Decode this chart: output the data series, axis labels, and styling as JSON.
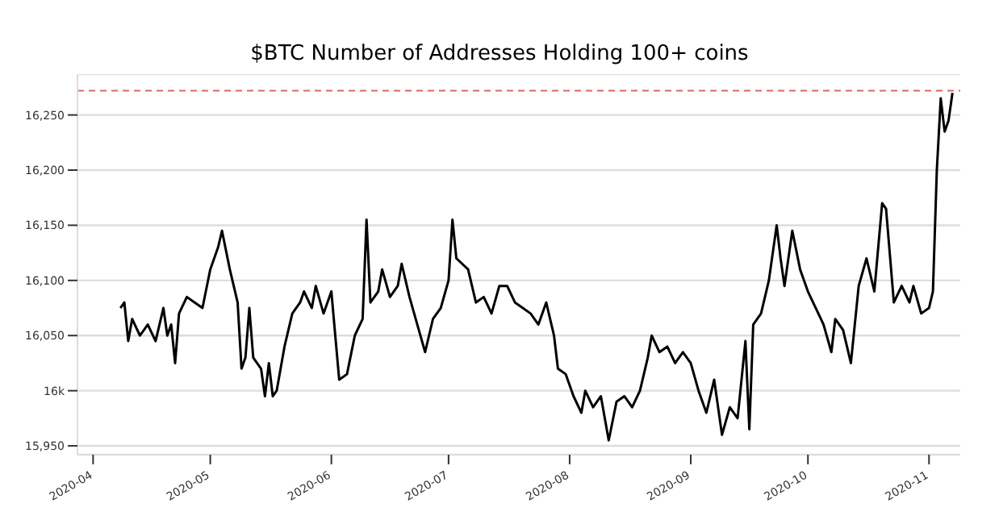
{
  "chart_data": {
    "type": "line",
    "title": "$BTC Number of Addresses Holding 100+ coins",
    "x": [
      "2020-04-08",
      "2020-04-09",
      "2020-04-10",
      "2020-04-11",
      "2020-04-13",
      "2020-04-15",
      "2020-04-17",
      "2020-04-19",
      "2020-04-20",
      "2020-04-21",
      "2020-04-22",
      "2020-04-23",
      "2020-04-25",
      "2020-04-27",
      "2020-04-29",
      "2020-05-01",
      "2020-05-03",
      "2020-05-04",
      "2020-05-06",
      "2020-05-08",
      "2020-05-09",
      "2020-05-10",
      "2020-05-11",
      "2020-05-12",
      "2020-05-14",
      "2020-05-15",
      "2020-05-16",
      "2020-05-17",
      "2020-05-18",
      "2020-05-20",
      "2020-05-22",
      "2020-05-24",
      "2020-05-25",
      "2020-05-27",
      "2020-05-28",
      "2020-05-30",
      "2020-06-01",
      "2020-06-02",
      "2020-06-03",
      "2020-06-05",
      "2020-06-07",
      "2020-06-09",
      "2020-06-10",
      "2020-06-11",
      "2020-06-13",
      "2020-06-14",
      "2020-06-16",
      "2020-06-18",
      "2020-06-19",
      "2020-06-21",
      "2020-06-23",
      "2020-06-25",
      "2020-06-27",
      "2020-06-29",
      "2020-07-01",
      "2020-07-02",
      "2020-07-03",
      "2020-07-06",
      "2020-07-08",
      "2020-07-10",
      "2020-07-12",
      "2020-07-14",
      "2020-07-16",
      "2020-07-18",
      "2020-07-20",
      "2020-07-22",
      "2020-07-24",
      "2020-07-26",
      "2020-07-28",
      "2020-07-29",
      "2020-07-31",
      "2020-08-02",
      "2020-08-04",
      "2020-08-05",
      "2020-08-07",
      "2020-08-09",
      "2020-08-11",
      "2020-08-13",
      "2020-08-15",
      "2020-08-17",
      "2020-08-19",
      "2020-08-21",
      "2020-08-22",
      "2020-08-24",
      "2020-08-26",
      "2020-08-28",
      "2020-08-30",
      "2020-09-01",
      "2020-09-03",
      "2020-09-05",
      "2020-09-07",
      "2020-09-09",
      "2020-09-11",
      "2020-09-13",
      "2020-09-15",
      "2020-09-16",
      "2020-09-17",
      "2020-09-19",
      "2020-09-21",
      "2020-09-23",
      "2020-09-24",
      "2020-09-25",
      "2020-09-27",
      "2020-09-29",
      "2020-10-01",
      "2020-10-03",
      "2020-10-05",
      "2020-10-07",
      "2020-10-08",
      "2020-10-10",
      "2020-10-12",
      "2020-10-14",
      "2020-10-16",
      "2020-10-18",
      "2020-10-20",
      "2020-10-21",
      "2020-10-23",
      "2020-10-25",
      "2020-10-27",
      "2020-10-28",
      "2020-10-30",
      "2020-11-01",
      "2020-11-02",
      "2020-11-03",
      "2020-11-04",
      "2020-11-05",
      "2020-11-06",
      "2020-11-07"
    ],
    "series": [
      {
        "color": "#000000",
        "values": [
          16075,
          16080,
          16045,
          16065,
          16050,
          16060,
          16045,
          16075,
          16050,
          16060,
          16025,
          16070,
          16085,
          16080,
          16075,
          16110,
          16130,
          16145,
          16110,
          16080,
          16020,
          16030,
          16075,
          16030,
          16020,
          15995,
          16025,
          15995,
          16000,
          16040,
          16070,
          16080,
          16090,
          16075,
          16095,
          16070,
          16090,
          16050,
          16010,
          16015,
          16050,
          16065,
          16155,
          16080,
          16090,
          16110,
          16085,
          16095,
          16115,
          16085,
          16060,
          16035,
          16065,
          16075,
          16100,
          16155,
          16120,
          16110,
          16080,
          16085,
          16070,
          16095,
          16095,
          16080,
          16075,
          16070,
          16060,
          16080,
          16050,
          16020,
          16015,
          15995,
          15980,
          16000,
          15985,
          15995,
          15955,
          15990,
          15995,
          15985,
          16000,
          16030,
          16050,
          16035,
          16040,
          16025,
          16035,
          16025,
          16000,
          15980,
          16010,
          15960,
          15985,
          15975,
          16045,
          15965,
          16060,
          16070,
          16100,
          16150,
          16120,
          16095,
          16145,
          16110,
          16090,
          16075,
          16060,
          16035,
          16065,
          16055,
          16025,
          16095,
          16120,
          16090,
          16170,
          16165,
          16080,
          16095,
          16080,
          16095,
          16070,
          16075,
          16090,
          16200,
          16265,
          16235,
          16245,
          16270
        ]
      }
    ],
    "xlim": [
      "2020-03-28",
      "2020-11-09"
    ],
    "xticks": [
      "2020-04",
      "2020-05",
      "2020-06",
      "2020-07",
      "2020-08",
      "2020-09",
      "2020-10",
      "2020-11"
    ],
    "ylim": [
      15942,
      16287
    ],
    "yticks": [
      {
        "value": 15950,
        "label": "15,950"
      },
      {
        "value": 16000,
        "label": "16k"
      },
      {
        "value": 16050,
        "label": "16,050"
      },
      {
        "value": 16100,
        "label": "16,100"
      },
      {
        "value": 16150,
        "label": "16,150"
      },
      {
        "value": 16200,
        "label": "16,200"
      },
      {
        "value": 16250,
        "label": "16,250"
      }
    ],
    "grid": "y",
    "ref_lines": [
      {
        "axis": "y",
        "value": 16272,
        "color": "#e06666",
        "line_style": "dashed"
      }
    ]
  }
}
